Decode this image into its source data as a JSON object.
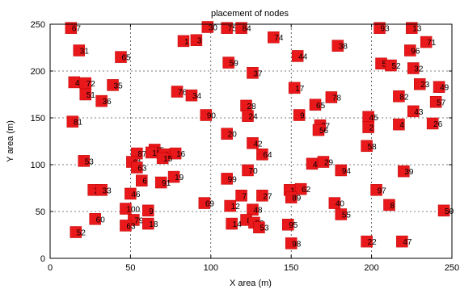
{
  "chart_data": {
    "type": "scatter",
    "title": "placement of nodes",
    "xlabel": "X area (m)",
    "ylabel": "Y area (m)",
    "xlim": [
      0,
      250
    ],
    "ylim": [
      0,
      250
    ],
    "xticks": [
      "0",
      "50",
      "100",
      "150",
      "200",
      "250"
    ],
    "yticks": [
      "0",
      "50",
      "100",
      "150",
      "200",
      "250"
    ],
    "grid": true,
    "marker_color": "#e8181b",
    "points": [
      {
        "label": "67",
        "x": 13,
        "y": 246
      },
      {
        "label": "30",
        "x": 98,
        "y": 247
      },
      {
        "label": "75",
        "x": 110,
        "y": 246
      },
      {
        "label": "84",
        "x": 119,
        "y": 246
      },
      {
        "label": "93",
        "x": 205,
        "y": 246
      },
      {
        "label": "13",
        "x": 225,
        "y": 246
      },
      {
        "label": "3",
        "x": 91,
        "y": 233
      },
      {
        "label": "1",
        "x": 83,
        "y": 232
      },
      {
        "label": "74",
        "x": 139,
        "y": 236
      },
      {
        "label": "38",
        "x": 179,
        "y": 227
      },
      {
        "label": "71",
        "x": 234,
        "y": 231
      },
      {
        "label": "31",
        "x": 18,
        "y": 222
      },
      {
        "label": "65",
        "x": 44,
        "y": 215
      },
      {
        "label": "44",
        "x": 154,
        "y": 216
      },
      {
        "label": "96",
        "x": 224,
        "y": 222
      },
      {
        "label": "59",
        "x": 111,
        "y": 209
      },
      {
        "label": "54",
        "x": 206,
        "y": 208
      },
      {
        "label": "52",
        "x": 212,
        "y": 206
      },
      {
        "label": "32",
        "x": 226,
        "y": 203
      },
      {
        "label": "37",
        "x": 126,
        "y": 198
      },
      {
        "label": "41",
        "x": 15,
        "y": 188
      },
      {
        "label": "72",
        "x": 22,
        "y": 187
      },
      {
        "label": "35",
        "x": 39,
        "y": 185
      },
      {
        "label": "23",
        "x": 230,
        "y": 186
      },
      {
        "label": "49",
        "x": 242,
        "y": 183
      },
      {
        "label": "17",
        "x": 152,
        "y": 182
      },
      {
        "label": "51",
        "x": 22,
        "y": 175
      },
      {
        "label": "36",
        "x": 32,
        "y": 168
      },
      {
        "label": "76",
        "x": 79,
        "y": 178
      },
      {
        "label": "34",
        "x": 88,
        "y": 174
      },
      {
        "label": "78",
        "x": 175,
        "y": 172
      },
      {
        "label": "82",
        "x": 217,
        "y": 173
      },
      {
        "label": "57",
        "x": 240,
        "y": 167
      },
      {
        "label": "65",
        "x": 165,
        "y": 164
      },
      {
        "label": "28",
        "x": 122,
        "y": 163
      },
      {
        "label": "43",
        "x": 226,
        "y": 157
      },
      {
        "label": "90",
        "x": 97,
        "y": 153
      },
      {
        "label": "24",
        "x": 123,
        "y": 152
      },
      {
        "label": "9",
        "x": 155,
        "y": 153
      },
      {
        "label": "45",
        "x": 198,
        "y": 151
      },
      {
        "label": "81",
        "x": 14,
        "y": 146
      },
      {
        "label": "77",
        "x": 168,
        "y": 142
      },
      {
        "label": "2",
        "x": 198,
        "y": 140
      },
      {
        "label": "4",
        "x": 217,
        "y": 143
      },
      {
        "label": "26",
        "x": 238,
        "y": 144
      },
      {
        "label": "56",
        "x": 167,
        "y": 137
      },
      {
        "label": "20",
        "x": 110,
        "y": 133
      },
      {
        "label": "42",
        "x": 126,
        "y": 123
      },
      {
        "label": "58",
        "x": 197,
        "y": 120
      },
      {
        "label": "25",
        "x": 65,
        "y": 116
      },
      {
        "label": "87",
        "x": 54,
        "y": 112
      },
      {
        "label": "10",
        "x": 63,
        "y": 113
      },
      {
        "label": "11",
        "x": 71,
        "y": 111
      },
      {
        "label": "16",
        "x": 78,
        "y": 112
      },
      {
        "label": "15",
        "x": 70,
        "y": 107
      },
      {
        "label": "64",
        "x": 132,
        "y": 111
      },
      {
        "label": "53",
        "x": 21,
        "y": 104
      },
      {
        "label": "61",
        "x": 51,
        "y": 103
      },
      {
        "label": "63",
        "x": 54,
        "y": 97
      },
      {
        "label": "46",
        "x": 163,
        "y": 101
      },
      {
        "label": "29",
        "x": 170,
        "y": 103
      },
      {
        "label": "94",
        "x": 181,
        "y": 94
      },
      {
        "label": "70",
        "x": 123,
        "y": 94
      },
      {
        "label": "39",
        "x": 220,
        "y": 93
      },
      {
        "label": "19",
        "x": 77,
        "y": 87
      },
      {
        "label": "99",
        "x": 110,
        "y": 85
      },
      {
        "label": "6",
        "x": 57,
        "y": 83
      },
      {
        "label": "91",
        "x": 69,
        "y": 81
      },
      {
        "label": "21",
        "x": 27,
        "y": 73
      },
      {
        "label": "33",
        "x": 32,
        "y": 73
      },
      {
        "label": "97",
        "x": 203,
        "y": 73
      },
      {
        "label": "16",
        "x": 149,
        "y": 73
      },
      {
        "label": "62",
        "x": 156,
        "y": 74
      },
      {
        "label": "46",
        "x": 50,
        "y": 69
      },
      {
        "label": "7",
        "x": 119,
        "y": 67
      },
      {
        "label": "27",
        "x": 132,
        "y": 67
      },
      {
        "label": "89",
        "x": 150,
        "y": 65
      },
      {
        "label": "69",
        "x": 96,
        "y": 59
      },
      {
        "label": "12",
        "x": 112,
        "y": 56
      },
      {
        "label": "40",
        "x": 177,
        "y": 59
      },
      {
        "label": "8",
        "x": 211,
        "y": 57
      },
      {
        "label": "50",
        "x": 245,
        "y": 51
      },
      {
        "label": "100",
        "x": 47,
        "y": 53
      },
      {
        "label": "9",
        "x": 61,
        "y": 51
      },
      {
        "label": "48",
        "x": 126,
        "y": 52
      },
      {
        "label": "55",
        "x": 181,
        "y": 47
      },
      {
        "label": "60",
        "x": 28,
        "y": 42
      },
      {
        "label": "79",
        "x": 52,
        "y": 41
      },
      {
        "label": "18",
        "x": 61,
        "y": 37
      },
      {
        "label": "63",
        "x": 47,
        "y": 35
      },
      {
        "label": "88",
        "x": 122,
        "y": 41
      },
      {
        "label": "14",
        "x": 113,
        "y": 37
      },
      {
        "label": "83",
        "x": 127,
        "y": 38
      },
      {
        "label": "53",
        "x": 130,
        "y": 33
      },
      {
        "label": "95",
        "x": 148,
        "y": 36
      },
      {
        "label": "52",
        "x": 16,
        "y": 28
      },
      {
        "label": "98",
        "x": 150,
        "y": 16
      },
      {
        "label": "22",
        "x": 197,
        "y": 18
      },
      {
        "label": "47",
        "x": 219,
        "y": 18
      }
    ]
  }
}
